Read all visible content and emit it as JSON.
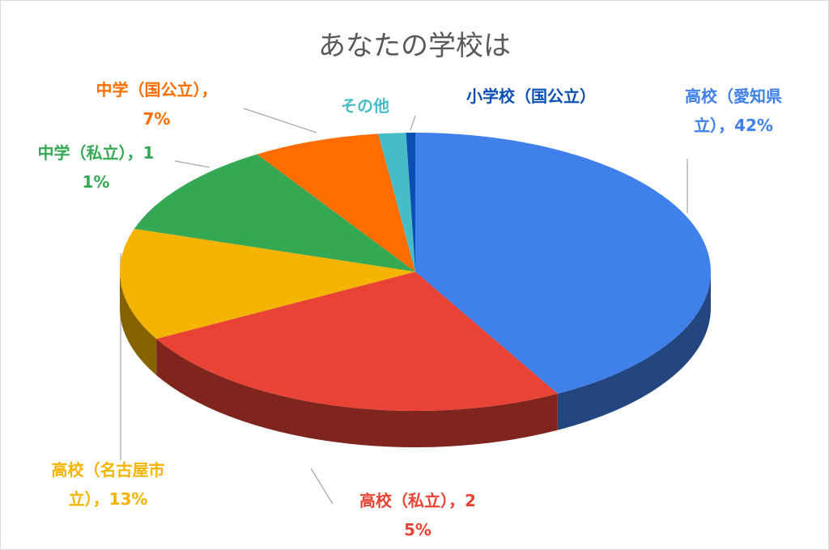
{
  "chart_data": {
    "type": "pie3d",
    "title": "あなたの学校は",
    "categories": [
      "高校（愛知県立）",
      "高校（私立）",
      "高校（名古屋市立）",
      "中学（私立）",
      "中学（国公立）",
      "その他",
      "小学校（国公立）"
    ],
    "values": [
      42,
      25,
      13,
      11,
      7,
      1.5,
      0.5
    ],
    "value_labels": [
      "42%",
      "25%",
      "13%",
      "11%",
      "7%",
      null,
      null
    ],
    "separator": "，",
    "colors": [
      "#3f80ea",
      "#e84335",
      "#f5b400",
      "#34a853",
      "#ff6d01",
      "#46bdc6",
      "#0b4fb3"
    ]
  }
}
